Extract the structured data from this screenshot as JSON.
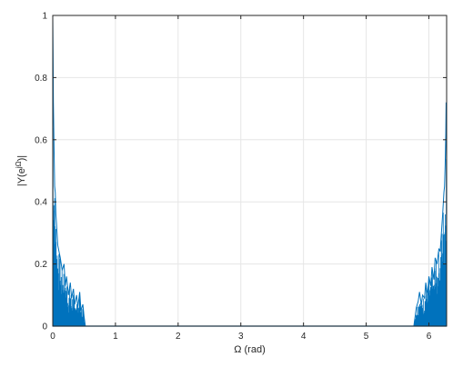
{
  "chart_data": {
    "type": "line",
    "title": "",
    "xlabel": "Ω (rad)",
    "ylabel": "|Y(e^jΩ)|",
    "xlim": [
      0,
      6.2832
    ],
    "ylim": [
      0,
      1
    ],
    "xticks": [
      "0",
      "1",
      "2",
      "3",
      "4",
      "5",
      "6"
    ],
    "yticks": [
      "0",
      "0.2",
      "0.4",
      "0.6",
      "0.8",
      "1"
    ],
    "grid": true,
    "series": [
      {
        "color": "#0072bd",
        "x": [
          0,
          0.005,
          0.01,
          0.02,
          0.03,
          0.04,
          0.05,
          0.06,
          0.08,
          0.1,
          0.12,
          0.15,
          0.18,
          0.2,
          0.22,
          0.25,
          0.28,
          0.3,
          0.33,
          0.35,
          0.38,
          0.4,
          0.43,
          0.45,
          0.48,
          0.5,
          0.52,
          1.0,
          2.0,
          3.0,
          4.0,
          5.0,
          5.76,
          5.78,
          5.8,
          5.83,
          5.85,
          5.88,
          5.9,
          5.93,
          5.95,
          5.98,
          6.0,
          6.03,
          6.05,
          6.08,
          6.1,
          6.13,
          6.16,
          6.18,
          6.2,
          6.22,
          6.24,
          6.25,
          6.26,
          6.27,
          6.275,
          6.28,
          6.2832
        ],
        "y": [
          1.0,
          0.88,
          0.72,
          0.58,
          0.45,
          0.43,
          0.36,
          0.33,
          0.26,
          0.24,
          0.22,
          0.18,
          0.2,
          0.13,
          0.16,
          0.1,
          0.14,
          0.09,
          0.12,
          0.07,
          0.1,
          0.06,
          0.11,
          0.05,
          0.07,
          0.03,
          0.0,
          0.0,
          0.0,
          0.0,
          0.0,
          0.0,
          0.0,
          0.03,
          0.06,
          0.08,
          0.11,
          0.07,
          0.1,
          0.09,
          0.14,
          0.1,
          0.16,
          0.13,
          0.19,
          0.15,
          0.22,
          0.2,
          0.25,
          0.24,
          0.3,
          0.36,
          0.43,
          0.45,
          0.52,
          0.62,
          0.72,
          0.62,
          0.0
        ]
      }
    ]
  }
}
